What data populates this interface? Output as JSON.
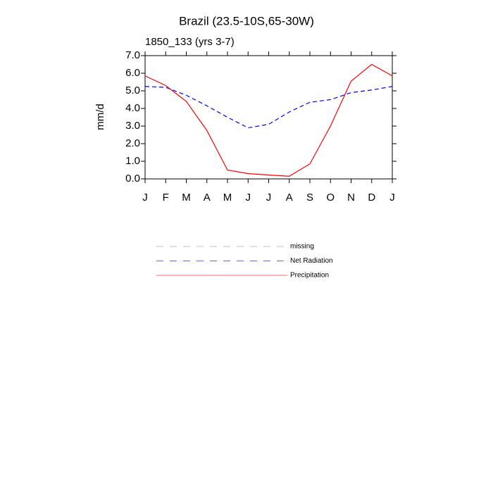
{
  "chart_data": {
    "type": "line",
    "title": "Brazil (23.5-10S,65-30W)",
    "subtitle": "1850_133 (yrs 3-7)",
    "y_label": "mm/d",
    "categories": [
      "J",
      "F",
      "M",
      "A",
      "M",
      "J",
      "J",
      "A",
      "S",
      "O",
      "N",
      "D",
      "J"
    ],
    "series": [
      {
        "name": "missing",
        "color": "#999999",
        "dashed": true,
        "values": [
          null,
          null,
          null,
          null,
          null,
          null,
          null,
          null,
          null,
          null,
          null,
          null,
          null
        ]
      },
      {
        "name": "Net Radiation",
        "color": "#0000ff",
        "dashed": true,
        "values": [
          5.25,
          5.2,
          4.75,
          4.15,
          3.5,
          2.9,
          3.1,
          3.8,
          4.35,
          4.5,
          4.9,
          5.05,
          5.25
        ]
      },
      {
        "name": "Precipitation",
        "color": "#ff0000",
        "dashed": false,
        "values": [
          5.85,
          5.3,
          4.4,
          2.75,
          0.5,
          0.3,
          0.22,
          0.15,
          0.85,
          3.0,
          5.55,
          6.5,
          5.85
        ]
      }
    ],
    "ylim": [
      0,
      7
    ],
    "yticks": [
      {
        "value": 0,
        "label": "0.0"
      },
      {
        "value": 1,
        "label": "1.0"
      },
      {
        "value": 2,
        "label": "2.0"
      },
      {
        "value": 3,
        "label": "3.0"
      },
      {
        "value": 4,
        "label": "4.0"
      },
      {
        "value": 5,
        "label": "5.0"
      },
      {
        "value": 6,
        "label": "6.0"
      },
      {
        "value": 7,
        "label": "7.0"
      }
    ]
  }
}
